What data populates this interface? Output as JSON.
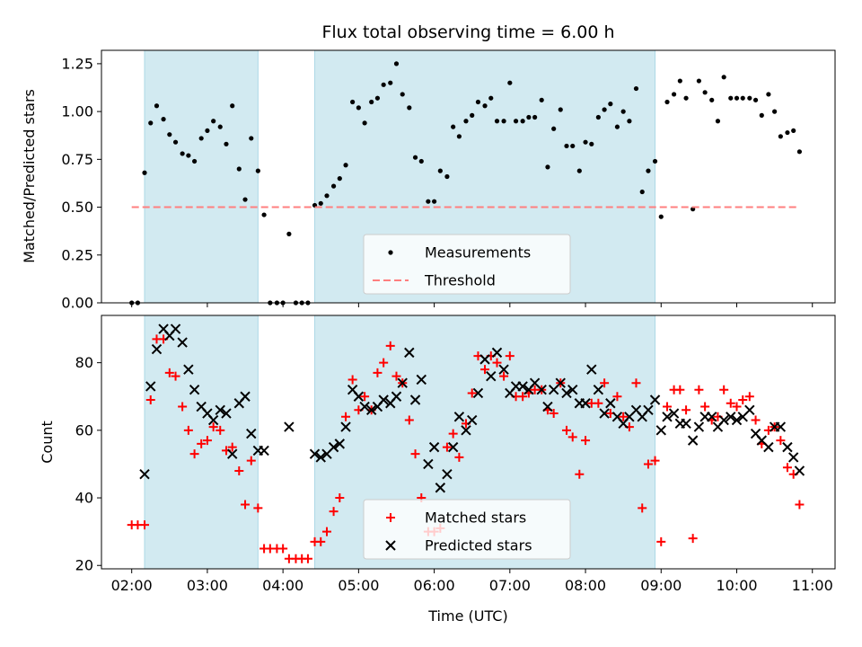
{
  "chart_data": [
    {
      "type": "scatter",
      "title": "Flux total observing time = 6.00 h",
      "ylabel": "Matched/Predicted stars",
      "xlabel": "",
      "xlim": [
        1.6,
        11.3
      ],
      "ylim": [
        0.0,
        1.32
      ],
      "grid": false,
      "legend_position": "lower center",
      "yticks": [
        0.0,
        0.25,
        0.5,
        0.75,
        1.0,
        1.25
      ],
      "ytick_labels": [
        "0.00",
        "0.25",
        "0.50",
        "0.75",
        "1.00",
        "1.25"
      ],
      "shaded_intervals_hours": [
        [
          2.17,
          3.67
        ],
        [
          4.42,
          8.92
        ]
      ],
      "shade_color": "#add8e6",
      "series": [
        {
          "name": "Measurements",
          "marker": "dot",
          "color": "#000000",
          "x": [
            2.0,
            2.08,
            2.17,
            2.25,
            2.33,
            2.42,
            2.5,
            2.58,
            2.67,
            2.75,
            2.83,
            2.92,
            3.0,
            3.08,
            3.17,
            3.25,
            3.33,
            3.42,
            3.5,
            3.58,
            3.67,
            3.75,
            3.83,
            3.92,
            4.0,
            4.08,
            4.17,
            4.25,
            4.33,
            4.42,
            4.5,
            4.58,
            4.67,
            4.75,
            4.83,
            4.92,
            5.0,
            5.08,
            5.17,
            5.25,
            5.33,
            5.42,
            5.5,
            5.58,
            5.67,
            5.75,
            5.83,
            5.92,
            6.0,
            6.08,
            6.17,
            6.25,
            6.33,
            6.42,
            6.5,
            6.58,
            6.67,
            6.75,
            6.83,
            6.92,
            7.0,
            7.08,
            7.17,
            7.25,
            7.33,
            7.42,
            7.5,
            7.58,
            7.67,
            7.75,
            7.83,
            7.92,
            8.0,
            8.08,
            8.17,
            8.25,
            8.33,
            8.42,
            8.5,
            8.58,
            8.67,
            8.75,
            8.83,
            8.92,
            9.0,
            9.08,
            9.17,
            9.25,
            9.33,
            9.42,
            9.5,
            9.58,
            9.67,
            9.75,
            9.83,
            9.92,
            10.0,
            10.08,
            10.17,
            10.25,
            10.33,
            10.42,
            10.5,
            10.58,
            10.67,
            10.75,
            10.83
          ],
          "y": [
            0.0,
            0.0,
            0.68,
            0.94,
            1.03,
            0.96,
            0.88,
            0.84,
            0.78,
            0.77,
            0.74,
            0.86,
            0.9,
            0.95,
            0.92,
            0.83,
            1.03,
            0.7,
            0.54,
            0.86,
            0.69,
            0.46,
            0.0,
            0.0,
            0.0,
            0.36,
            0.0,
            0.0,
            0.0,
            0.51,
            0.52,
            0.56,
            0.61,
            0.65,
            0.72,
            1.05,
            1.02,
            0.94,
            1.05,
            1.07,
            1.14,
            1.15,
            1.25,
            1.09,
            1.02,
            0.76,
            0.74,
            0.53,
            0.53,
            0.69,
            0.66,
            0.92,
            0.87,
            0.95,
            0.98,
            1.05,
            1.03,
            1.07,
            0.95,
            0.95,
            1.15,
            0.95,
            0.95,
            0.97,
            0.97,
            1.06,
            0.71,
            0.91,
            1.01,
            0.82,
            0.82,
            0.69,
            0.84,
            0.83,
            0.97,
            1.01,
            1.04,
            0.92,
            1.0,
            0.95,
            1.12,
            0.58,
            0.69,
            0.74,
            0.45,
            1.05,
            1.09,
            1.16,
            1.07,
            0.49,
            1.16,
            1.1,
            1.06,
            0.95,
            1.18,
            1.07,
            1.07,
            1.07,
            1.07,
            1.06,
            0.98,
            1.09,
            1.0,
            0.87,
            0.89,
            0.9,
            0.79
          ]
        },
        {
          "name": "Threshold",
          "marker": "dashed-line",
          "color": "#ff7f7f",
          "x": [
            2.0,
            10.83
          ],
          "y": [
            0.5,
            0.5
          ]
        }
      ]
    },
    {
      "type": "scatter",
      "title": "",
      "ylabel": "Count",
      "xlabel": "Time (UTC)",
      "xlim": [
        1.6,
        11.3
      ],
      "ylim": [
        19,
        94
      ],
      "grid": false,
      "legend_position": "lower center",
      "yticks": [
        20,
        40,
        60,
        80
      ],
      "ytick_labels": [
        "20",
        "40",
        "60",
        "80"
      ],
      "xticks": [
        2,
        3,
        4,
        5,
        6,
        7,
        8,
        9,
        10,
        11
      ],
      "xtick_labels": [
        "02:00",
        "03:00",
        "04:00",
        "05:00",
        "06:00",
        "07:00",
        "08:00",
        "09:00",
        "10:00",
        "11:00"
      ],
      "shaded_intervals_hours": [
        [
          2.17,
          3.67
        ],
        [
          4.42,
          8.92
        ]
      ],
      "shade_color": "#add8e6",
      "series": [
        {
          "name": "Matched stars",
          "marker": "plus",
          "color": "#ff0000",
          "x": [
            2.0,
            2.08,
            2.17,
            2.25,
            2.33,
            2.42,
            2.5,
            2.58,
            2.67,
            2.75,
            2.83,
            2.92,
            3.0,
            3.08,
            3.17,
            3.25,
            3.33,
            3.42,
            3.5,
            3.58,
            3.67,
            3.75,
            3.83,
            3.92,
            4.0,
            4.08,
            4.17,
            4.25,
            4.33,
            4.42,
            4.5,
            4.58,
            4.67,
            4.75,
            4.83,
            4.92,
            5.0,
            5.08,
            5.17,
            5.25,
            5.33,
            5.42,
            5.5,
            5.58,
            5.67,
            5.75,
            5.83,
            5.92,
            6.0,
            6.08,
            6.17,
            6.25,
            6.33,
            6.42,
            6.5,
            6.58,
            6.67,
            6.75,
            6.83,
            6.92,
            7.0,
            7.08,
            7.17,
            7.25,
            7.33,
            7.42,
            7.5,
            7.58,
            7.67,
            7.75,
            7.83,
            7.92,
            8.0,
            8.08,
            8.17,
            8.25,
            8.33,
            8.42,
            8.5,
            8.58,
            8.67,
            8.75,
            8.83,
            8.92,
            9.0,
            9.08,
            9.17,
            9.25,
            9.33,
            9.42,
            9.5,
            9.58,
            9.67,
            9.75,
            9.83,
            9.92,
            10.0,
            10.08,
            10.17,
            10.25,
            10.33,
            10.42,
            10.5,
            10.58,
            10.67,
            10.75,
            10.83
          ],
          "y": [
            32,
            32,
            32,
            69,
            87,
            87,
            77,
            76,
            67,
            60,
            53,
            56,
            57,
            61,
            60,
            54,
            55,
            48,
            38,
            51,
            37,
            25,
            25,
            25,
            25,
            22,
            22,
            22,
            22,
            27,
            27,
            30,
            36,
            40,
            64,
            75,
            66,
            70,
            66,
            77,
            80,
            85,
            76,
            74,
            63,
            53,
            40,
            30,
            30,
            31,
            55,
            59,
            52,
            62,
            71,
            82,
            78,
            82,
            80,
            76,
            82,
            70,
            70,
            71,
            72,
            72,
            66,
            65,
            74,
            60,
            58,
            47,
            57,
            68,
            68,
            74,
            65,
            70,
            64,
            61,
            74,
            37,
            50,
            51,
            27,
            67,
            72,
            72,
            66,
            28,
            72,
            67,
            63,
            64,
            72,
            68,
            67,
            69,
            70,
            63,
            56,
            60,
            61,
            57,
            49,
            47,
            38
          ]
        },
        {
          "name": "Predicted stars",
          "marker": "x",
          "color": "#000000",
          "x": [
            2.17,
            2.25,
            2.33,
            2.42,
            2.5,
            2.58,
            2.67,
            2.75,
            2.83,
            2.92,
            3.0,
            3.08,
            3.17,
            3.25,
            3.33,
            3.42,
            3.5,
            3.58,
            3.67,
            3.75,
            4.08,
            4.42,
            4.5,
            4.58,
            4.67,
            4.75,
            4.83,
            4.92,
            5.0,
            5.08,
            5.17,
            5.25,
            5.33,
            5.42,
            5.5,
            5.58,
            5.67,
            5.75,
            5.83,
            5.92,
            6.0,
            6.08,
            6.17,
            6.25,
            6.33,
            6.42,
            6.5,
            6.58,
            6.67,
            6.75,
            6.83,
            6.92,
            7.0,
            7.08,
            7.17,
            7.25,
            7.33,
            7.42,
            7.5,
            7.58,
            7.67,
            7.75,
            7.83,
            7.92,
            8.0,
            8.08,
            8.17,
            8.25,
            8.33,
            8.42,
            8.5,
            8.58,
            8.67,
            8.75,
            8.83,
            8.92,
            9.0,
            9.08,
            9.17,
            9.25,
            9.33,
            9.42,
            9.5,
            9.58,
            9.67,
            9.75,
            9.83,
            9.92,
            10.0,
            10.08,
            10.17,
            10.25,
            10.33,
            10.42,
            10.5,
            10.58,
            10.67,
            10.75,
            10.83
          ],
          "y": [
            47,
            73,
            84,
            90,
            88,
            90,
            86,
            78,
            72,
            67,
            65,
            63,
            66,
            65,
            53,
            68,
            70,
            59,
            54,
            54,
            61,
            53,
            52,
            53,
            55,
            56,
            61,
            72,
            70,
            67,
            66,
            67,
            69,
            68,
            70,
            74,
            83,
            69,
            75,
            50,
            55,
            43,
            47,
            55,
            64,
            60,
            63,
            71,
            81,
            76,
            83,
            78,
            71,
            73,
            73,
            72,
            74,
            72,
            67,
            72,
            74,
            71,
            72,
            68,
            68,
            78,
            72,
            65,
            68,
            64,
            62,
            64,
            66,
            64,
            66,
            69,
            60,
            64,
            65,
            62,
            62,
            57,
            61,
            64,
            64,
            61,
            63,
            64,
            63,
            64,
            66,
            59,
            57,
            55,
            61,
            61,
            55,
            52,
            48
          ]
        }
      ]
    }
  ]
}
